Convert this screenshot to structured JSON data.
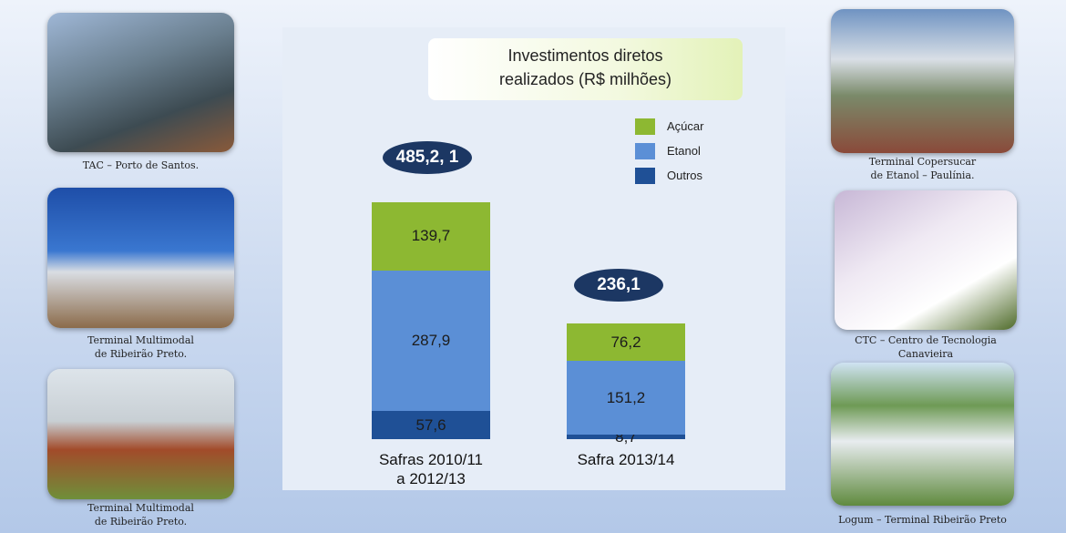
{
  "chart_data": {
    "type": "stacked-bar",
    "title": [
      "Investimentos diretos",
      "realizados (R$ milhões)"
    ],
    "categories": [
      [
        "Safras 2010/11",
        "a 2012/13"
      ],
      [
        "Safra 2013/14"
      ]
    ],
    "series": [
      {
        "name": "Outros",
        "color": "#1f5096",
        "values": [
          57.6,
          8.7
        ],
        "value_labels": [
          "57,6",
          "8,7"
        ]
      },
      {
        "name": "Etanol",
        "color": "#5b8fd6",
        "values": [
          287.9,
          151.2
        ],
        "value_labels": [
          "287,9",
          "151,2"
        ]
      },
      {
        "name": "Açúcar",
        "color": "#8db832",
        "values": [
          139.7,
          76.2
        ],
        "value_labels": [
          "139,7",
          "76,2"
        ]
      }
    ],
    "annotations": [
      "485,2, 1",
      "236,1"
    ]
  },
  "photos": [
    {
      "caption": [
        "TAC – Porto de Santos."
      ]
    },
    {
      "caption": [
        "Terminal Multimodal",
        "de Ribeirão Preto."
      ]
    },
    {
      "caption": [
        "Terminal Multimodal",
        "de Ribeirão Preto."
      ]
    },
    {
      "caption": [
        "Terminal Copersucar",
        "de Etanol – Paulínia."
      ]
    },
    {
      "caption": [
        "CTC – Centro de Tecnologia",
        "Canavieira"
      ]
    },
    {
      "caption": [
        "Logum – Terminal Ribeirão Preto"
      ]
    }
  ]
}
